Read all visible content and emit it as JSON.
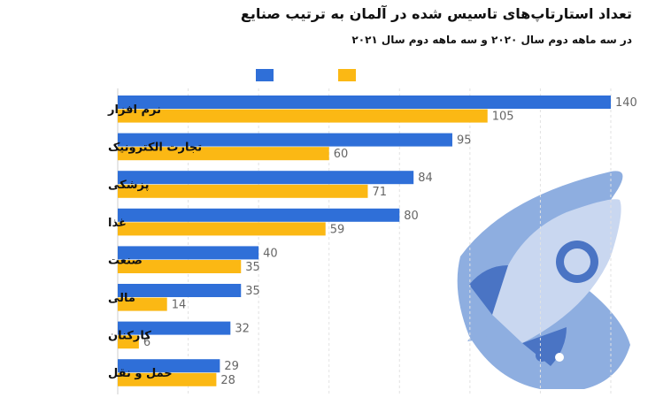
{
  "chart_data": {
    "type": "bar",
    "orientation": "horizontal",
    "title": "تعداد استارتاپ‌های تاسیس شده در آلمان به ترتیب صنایع",
    "subtitle": "در سه ماهه دوم سال ۲۰۲۰ و سه ماهه دوم سال ۲۰۲۱",
    "categories": [
      "نرم افزار",
      "تجارت الکترونیک",
      "پزشکی",
      "غذا",
      "صنعت",
      "مالی",
      "کارکنان",
      "حمل و نقل"
    ],
    "series": [
      {
        "color": "#2f6fd8",
        "values": [
          140,
          95,
          84,
          80,
          40,
          35,
          32,
          29
        ]
      },
      {
        "color": "#fbb814",
        "values": [
          105,
          60,
          71,
          59,
          35,
          14,
          6,
          28
        ]
      }
    ],
    "xlim": [
      0,
      140
    ],
    "grid": true,
    "legend_position": "top"
  },
  "colors": {
    "rocket_dark": "#4a74c4",
    "rocket_mid": "#8eaee0",
    "rocket_light": "#c9d7f0",
    "grid": "#e2e2e2"
  }
}
